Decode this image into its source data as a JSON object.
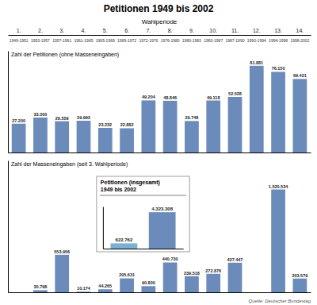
{
  "chart_data": [
    {
      "type": "bar",
      "title": "Petitionen 1949 bis 2002",
      "x_label": "Wahlperiode",
      "y_label": "Zahl der Petitionen (ohne Masseneingaben)",
      "categories": [
        "1.",
        "2.",
        "3.",
        "4.",
        "5.",
        "6.",
        "7.",
        "8.",
        "9.",
        "10.",
        "11.",
        "12.",
        "13.",
        "14."
      ],
      "annotations": [
        "1949-1951",
        "1953-1957",
        "1957-1961",
        "1961-1965",
        "1965-1969",
        "1969-1972",
        "1972-1976",
        "1976-1980",
        "1980-1983",
        "1983-1987",
        "1987-1990",
        "1990-1994",
        "1994-1998",
        "1998-2002"
      ],
      "values": [
        27200,
        33000,
        29559,
        29993,
        23232,
        22882,
        49204,
        48846,
        29748,
        49118,
        52528,
        81881,
        76150,
        69421
      ],
      "value_labels": [
        "27.200",
        "33.000",
        "29.559",
        "29.993",
        "23.232",
        "22.882",
        "49.204",
        "48.846",
        "29.748",
        "49.118",
        "52.528",
        "81.881",
        "76.150",
        "69.421"
      ],
      "color": "#6b8cba",
      "ylim": [
        0,
        96000
      ],
      "yticks": [],
      "tick_labels": "x",
      "data_labels": true
    },
    {
      "type": "bar",
      "y_label": "Zahl der Masseneingaben (seit 3. Wahlperiode)",
      "categories": [
        null,
        null,
        null,
        null,
        null,
        null,
        null,
        null,
        null,
        null,
        null,
        null,
        null,
        null
      ],
      "values": [
        0,
        30798,
        553956,
        10174,
        44265,
        205631,
        90800,
        440730,
        239518,
        272876,
        437447,
        0,
        1520534,
        203579
      ],
      "value_labels": [
        null,
        "30.798",
        "553.956",
        "10.174",
        "44.265",
        "205.631",
        "90.800",
        "440.730",
        "239.518",
        "272.876",
        "437.447",
        null,
        "1.520.534",
        "203.579"
      ],
      "color": "#6b8cba",
      "ylim": [
        0,
        1950000
      ],
      "yticks": [],
      "tick_labels": false,
      "data_labels": true,
      "annotations": [
        "Quelle: Deutscher Bundestag"
      ]
    },
    {
      "type": "bar",
      "title": "Petitionen (insgesamt)",
      "subtitle": "1949 bis 2002",
      "categories": [
        null,
        null
      ],
      "values": [
        622762,
        4323308
      ],
      "value_labels": [
        "622.762",
        "4.323.308"
      ],
      "colors": [
        "#7bafd4",
        "#6b8cba"
      ],
      "ylim": [
        0,
        5000000
      ],
      "yticks": [],
      "tick_labels": false,
      "data_labels": true
    }
  ]
}
